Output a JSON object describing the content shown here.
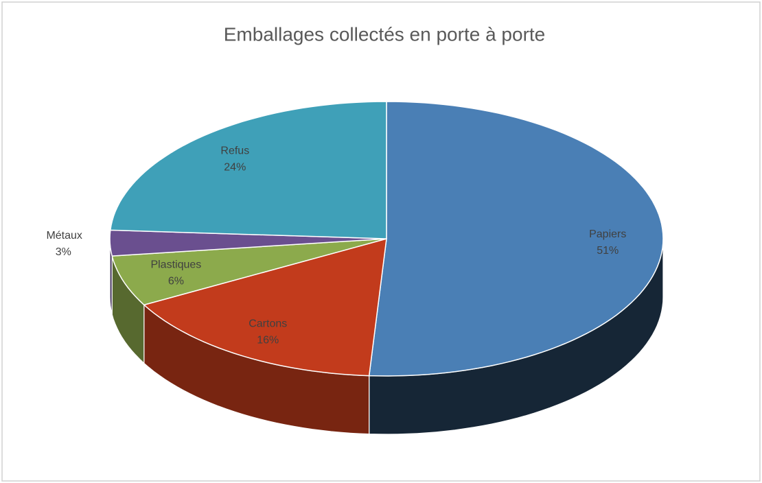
{
  "chart_data": {
    "type": "pie",
    "title": "Emballages collectés en porte à porte",
    "categories": [
      "Papiers",
      "Cartons",
      "Plastiques",
      "Métaux",
      "Refus"
    ],
    "values": [
      51,
      16,
      6,
      3,
      24
    ],
    "value_labels": [
      "51%",
      "16%",
      "6%",
      "3%",
      "24%"
    ],
    "colors": [
      "#4a7fb5",
      "#c23b1c",
      "#8caa4c",
      "#6a4f8f",
      "#3fa0b8"
    ]
  }
}
